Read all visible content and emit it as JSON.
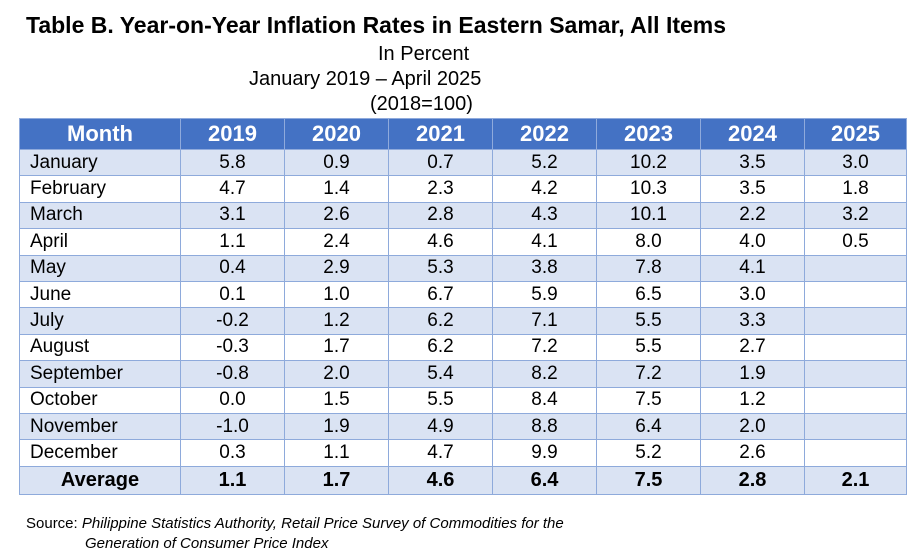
{
  "title": "Table B. Year-on-Year Inflation Rates in Eastern Samar, All Items",
  "subtitle_unit": "In Percent",
  "subtitle_period": "January 2019 – April 2025",
  "subtitle_base": "(2018=100)",
  "table": {
    "headers": [
      "Month",
      "2019",
      "2020",
      "2021",
      "2022",
      "2023",
      "2024",
      "2025"
    ],
    "rows": [
      [
        "January",
        "5.8",
        "0.9",
        "0.7",
        "5.2",
        "10.2",
        "3.5",
        "3.0"
      ],
      [
        "February",
        "4.7",
        "1.4",
        "2.3",
        "4.2",
        "10.3",
        "3.5",
        "1.8"
      ],
      [
        "March",
        "3.1",
        "2.6",
        "2.8",
        "4.3",
        "10.1",
        "2.2",
        "3.2"
      ],
      [
        "April",
        "1.1",
        "2.4",
        "4.6",
        "4.1",
        "8.0",
        "4.0",
        "0.5"
      ],
      [
        "May",
        "0.4",
        "2.9",
        "5.3",
        "3.8",
        "7.8",
        "4.1",
        ""
      ],
      [
        "June",
        "0.1",
        "1.0",
        "6.7",
        "5.9",
        "6.5",
        "3.0",
        ""
      ],
      [
        "July",
        "-0.2",
        "1.2",
        "6.2",
        "7.1",
        "5.5",
        "3.3",
        ""
      ],
      [
        "August",
        "-0.3",
        "1.7",
        "6.2",
        "7.2",
        "5.5",
        "2.7",
        ""
      ],
      [
        "September",
        "-0.8",
        "2.0",
        "5.4",
        "8.2",
        "7.2",
        "1.9",
        ""
      ],
      [
        "October",
        "0.0",
        "1.5",
        "5.5",
        "8.4",
        "7.5",
        "1.2",
        ""
      ],
      [
        "November",
        "-1.0",
        "1.9",
        "4.9",
        "8.8",
        "6.4",
        "2.0",
        ""
      ],
      [
        "December",
        "0.3",
        "1.1",
        "4.7",
        "9.9",
        "5.2",
        "2.6",
        ""
      ]
    ],
    "average": [
      "Average",
      "1.1",
      "1.7",
      "4.6",
      "6.4",
      "7.5",
      "2.8",
      "2.1"
    ]
  },
  "source": {
    "label": "Source: ",
    "line1": "Philippine Statistics Authority, Retail Price Survey of Commodities for the",
    "line2": "Generation of Consumer Price Index"
  },
  "colors": {
    "header_bg": "#4472c4",
    "band_bg": "#dae3f3",
    "border": "#8eaadb"
  }
}
